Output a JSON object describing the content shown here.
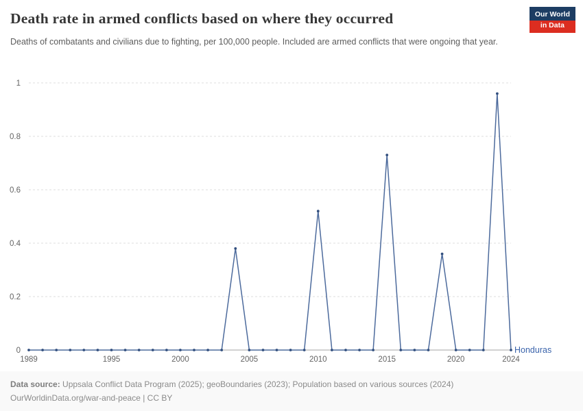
{
  "header": {
    "title": "Death rate in armed conflicts based on where they occurred",
    "subtitle": "Deaths of combatants and civilians due to fighting, per 100,000 people. Included are armed conflicts that were ongoing that year.",
    "logo": {
      "line1": "Our World",
      "line2": "in Data",
      "bg_color": "#1d3d63",
      "accent_color": "#dc2d20"
    }
  },
  "chart_data": {
    "type": "line",
    "xlim": [
      1989,
      2024
    ],
    "ylim": [
      0,
      1
    ],
    "x_ticks": [
      1989,
      1995,
      2000,
      2005,
      2010,
      2015,
      2020,
      2024
    ],
    "y_ticks": [
      0,
      0.2,
      0.4,
      0.6,
      0.8,
      1
    ],
    "grid": "horizontal-dashed",
    "legend_position": "end-of-line",
    "series": [
      {
        "name": "Honduras",
        "color": "#4c6a9c",
        "marker_color": "#33507f",
        "label_color": "#3a63ab",
        "x": [
          1989,
          1990,
          1991,
          1992,
          1993,
          1994,
          1995,
          1996,
          1997,
          1998,
          1999,
          2000,
          2001,
          2002,
          2003,
          2004,
          2005,
          2006,
          2007,
          2008,
          2009,
          2010,
          2011,
          2012,
          2013,
          2014,
          2015,
          2016,
          2017,
          2018,
          2019,
          2020,
          2021,
          2022,
          2023,
          2024
        ],
        "values": [
          0,
          0,
          0,
          0,
          0,
          0,
          0,
          0,
          0,
          0,
          0,
          0,
          0,
          0,
          0,
          0.38,
          0,
          0,
          0,
          0,
          0,
          0.52,
          0,
          0,
          0,
          0,
          0.73,
          0,
          0,
          0,
          0.36,
          0,
          0,
          0,
          0.96,
          0
        ]
      }
    ]
  },
  "footer": {
    "datasource_label": "Data source:",
    "datasource_text": " Uppsala Conflict Data Program (2025); geoBoundaries (2023); Population based on various sources (2024)",
    "link_text": "OurWorldinData.org/war-and-peace | CC BY"
  }
}
